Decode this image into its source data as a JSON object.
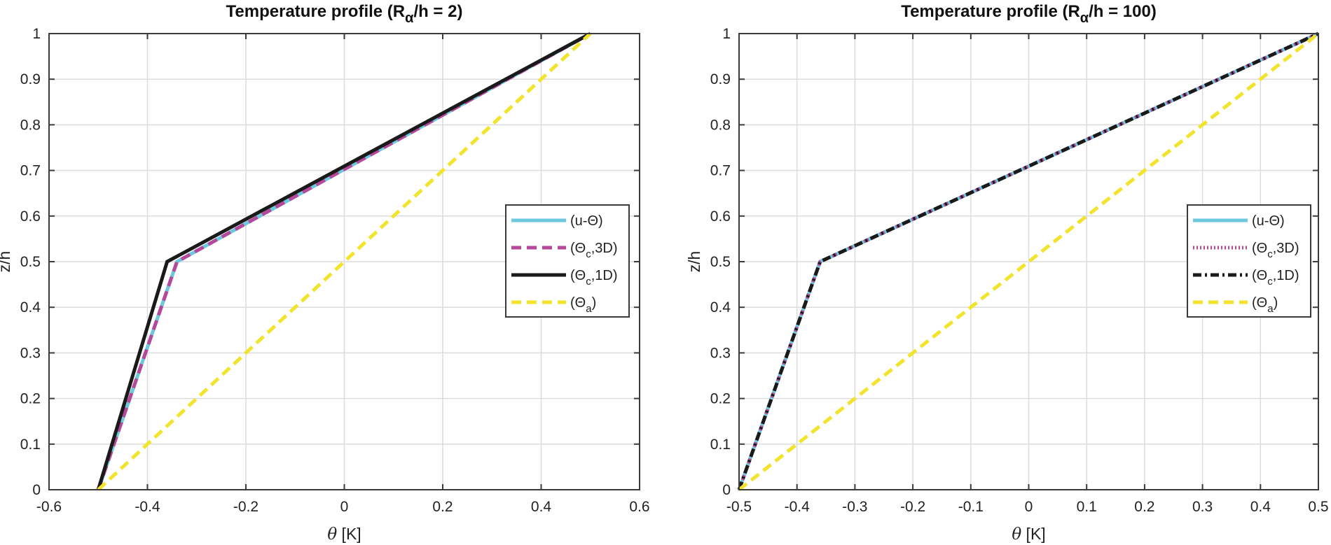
{
  "chart_data": [
    {
      "type": "line",
      "title": "Temperature profile (R",
      "title_sub": "α",
      "title_tail": "/h = 2)",
      "xlabel_symbol": "θ",
      "xlabel_unit": " [K]",
      "ylabel": "z/h",
      "xlim": [
        -0.6,
        0.6
      ],
      "ylim": [
        0,
        1
      ],
      "xticks": [
        -0.6,
        -0.4,
        -0.2,
        0,
        0.2,
        0.4,
        0.6
      ],
      "xtick_labels": [
        "-0.6",
        "-0.4",
        "-0.2",
        "0",
        "0.2",
        "0.4",
        "0.6"
      ],
      "yticks": [
        0,
        0.1,
        0.2,
        0.3,
        0.4,
        0.5,
        0.6,
        0.7,
        0.8,
        0.9,
        1
      ],
      "ytick_labels": [
        "0",
        "0.1",
        "0.2",
        "0.3",
        "0.4",
        "0.5",
        "0.6",
        "0.7",
        "0.8",
        "0.9",
        "1"
      ],
      "grid": true,
      "legend_position": "right-middle",
      "series": [
        {
          "name": "(u-Θ)",
          "label_main": "(u-Θ)",
          "label_sub": "",
          "label_tail": "",
          "color": "#6CC8DC",
          "style": "solid",
          "x": [
            -0.5,
            -0.34,
            0.5
          ],
          "y": [
            0,
            0.5,
            1
          ]
        },
        {
          "name": "(Θc,3D)",
          "label_main": "(Θ",
          "label_sub": "c",
          "label_tail": ",3D)",
          "color": "#B5489A",
          "style": "dashed",
          "x": [
            -0.5,
            -0.34,
            0.5
          ],
          "y": [
            0,
            0.5,
            1
          ]
        },
        {
          "name": "(Θc,1D)",
          "label_main": "(Θ",
          "label_sub": "c",
          "label_tail": ",1D)",
          "color": "#1A1A1A",
          "style": "solid",
          "x": [
            -0.5,
            -0.36,
            0.5
          ],
          "y": [
            0,
            0.5,
            1
          ]
        },
        {
          "name": "(Θa)",
          "label_main": "(Θ",
          "label_sub": "a",
          "label_tail": ")",
          "color": "#F2E42C",
          "style": "dashed",
          "x": [
            -0.5,
            0.5
          ],
          "y": [
            0,
            1
          ]
        }
      ]
    },
    {
      "type": "line",
      "title": "Temperature profile (R",
      "title_sub": "α",
      "title_tail": "/h = 100)",
      "xlabel_symbol": "θ",
      "xlabel_unit": " [K]",
      "ylabel": "z/h",
      "xlim": [
        -0.5,
        0.5
      ],
      "ylim": [
        0,
        1
      ],
      "xticks": [
        -0.5,
        -0.4,
        -0.3,
        -0.2,
        -0.1,
        0,
        0.1,
        0.2,
        0.3,
        0.4,
        0.5
      ],
      "xtick_labels": [
        "-0.5",
        "-0.4",
        "-0.3",
        "-0.2",
        "-0.1",
        "0",
        "0.1",
        "0.2",
        "0.3",
        "0.4",
        "0.5"
      ],
      "yticks": [
        0,
        0.1,
        0.2,
        0.3,
        0.4,
        0.5,
        0.6,
        0.7,
        0.8,
        0.9,
        1
      ],
      "ytick_labels": [
        "0",
        "0.1",
        "0.2",
        "0.3",
        "0.4",
        "0.5",
        "0.6",
        "0.7",
        "0.8",
        "0.9",
        "1"
      ],
      "grid": true,
      "legend_position": "right-middle",
      "series": [
        {
          "name": "(u-Θ)",
          "label_main": "(u-Θ)",
          "label_sub": "",
          "label_tail": "",
          "color": "#6CC8DC",
          "style": "solid",
          "x": [
            -0.5,
            -0.36,
            0.5
          ],
          "y": [
            0,
            0.5,
            1
          ]
        },
        {
          "name": "(Θc,3D)",
          "label_main": "(Θ",
          "label_sub": "c",
          "label_tail": ",3D)",
          "color": "#B5489A",
          "style": "dotted",
          "x": [
            -0.5,
            -0.36,
            0.5
          ],
          "y": [
            0,
            0.5,
            1
          ]
        },
        {
          "name": "(Θc,1D)",
          "label_main": "(Θ",
          "label_sub": "c",
          "label_tail": ",1D)",
          "color": "#1A1A1A",
          "style": "dashdot",
          "x": [
            -0.5,
            -0.36,
            0.5
          ],
          "y": [
            0,
            0.5,
            1
          ]
        },
        {
          "name": "(Θa)",
          "label_main": "(Θ",
          "label_sub": "a",
          "label_tail": ")",
          "color": "#F2E42C",
          "style": "dashed",
          "x": [
            -0.5,
            0.5
          ],
          "y": [
            0,
            1
          ]
        }
      ]
    }
  ]
}
